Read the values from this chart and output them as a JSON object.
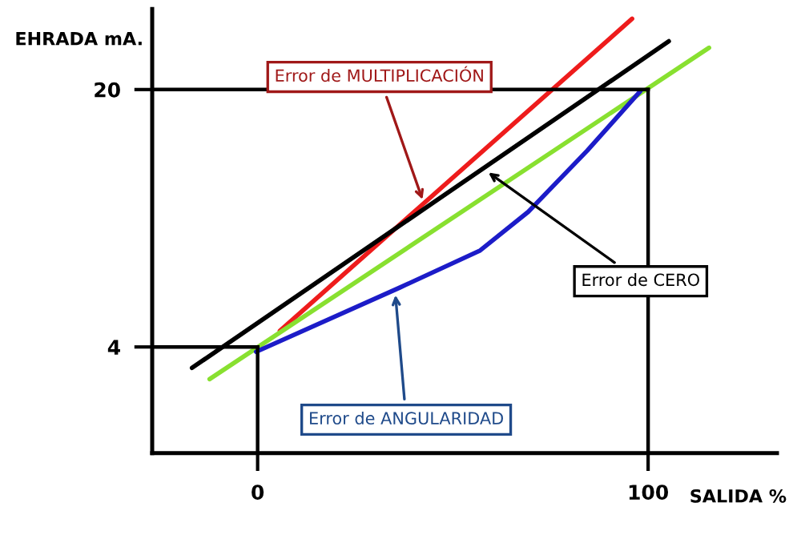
{
  "chart_data": {
    "type": "line",
    "xlabel": "SALIDA %",
    "ylabel": "EHRADA mA.",
    "xlim": [
      -27,
      133
    ],
    "ylim": [
      -2.6,
      25
    ],
    "xticks": [
      0,
      100
    ],
    "yticks": [
      4,
      20
    ],
    "grid": false,
    "marker": "none",
    "line_style": "solid",
    "series": [
      {
        "color": "#ee1c1c",
        "x": [
          5.7,
          95.9
        ],
        "values": [
          5.0,
          24.4
        ]
      },
      {
        "color": "#000000",
        "x": [
          -16.8,
          105.3
        ],
        "values": [
          2.7,
          23.0
        ]
      },
      {
        "color": "#88e030",
        "x": [
          -12.3,
          115.6
        ],
        "values": [
          2.0,
          22.6
        ]
      },
      {
        "color": "#1c1cc8",
        "x": [
          -0.4,
          36.5,
          57,
          69.3,
          84.4,
          98
        ],
        "values": [
          3.7,
          7.7,
          10.0,
          12.4,
          16.2,
          19.9
        ]
      }
    ],
    "ref_lines": [
      {
        "axis": "y",
        "value": 20,
        "color": "#000000"
      },
      {
        "axis": "x",
        "value": 100,
        "color": "#000000"
      },
      {
        "axis": "y",
        "value": 4,
        "color": "#000000"
      },
      {
        "axis": "x",
        "value": 0,
        "color": "#000000"
      }
    ],
    "annotations": [
      {
        "text": "Error de MULTIPLICACIÓN",
        "x": 42.6,
        "y": 12.9
      },
      {
        "text": "Error de CERO",
        "x": 58.2,
        "y": 15.0
      },
      {
        "text": "Error de ANGULARIDAD",
        "x": 35.2,
        "y": 7.5
      }
    ]
  }
}
